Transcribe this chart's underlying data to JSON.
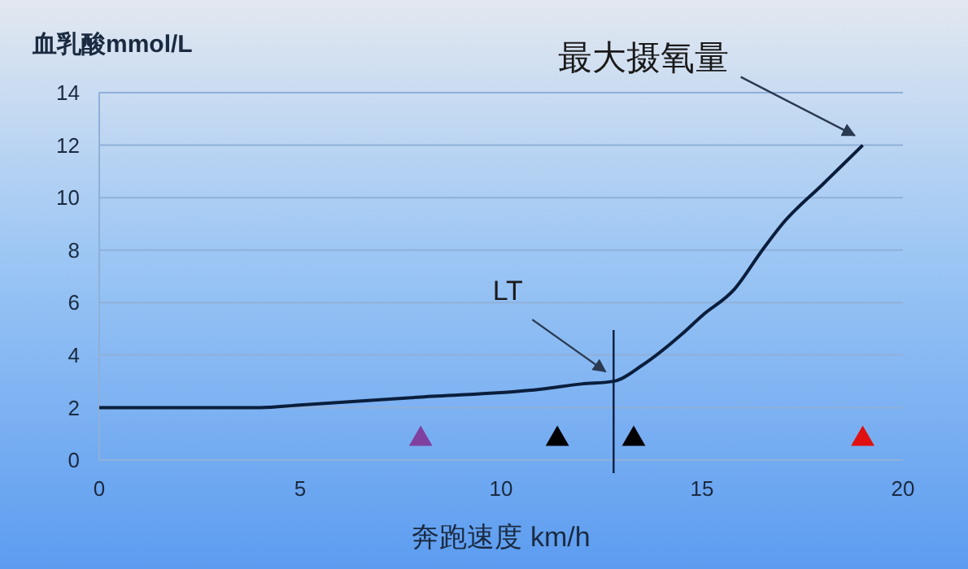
{
  "chart_data": {
    "type": "line",
    "ylabel": "血乳酸mmol/L",
    "xlabel": "奔跑速度 km/h",
    "xlim": [
      0,
      20
    ],
    "xticks": [
      0,
      5,
      10,
      15,
      20
    ],
    "ylim": [
      0,
      14
    ],
    "yticks": [
      0,
      2,
      4,
      6,
      8,
      10,
      12,
      14
    ],
    "grid": "y",
    "series": [
      {
        "color": "#0a1e3c",
        "x": [
          0,
          4,
          5,
          8,
          11,
          12,
          12.8,
          13.5,
          14.5,
          15,
          15.8,
          16.5,
          17,
          18,
          19
        ],
        "values": [
          2,
          2,
          2.1,
          2.4,
          2.7,
          2.9,
          3.0,
          3.6,
          4.8,
          5.5,
          6.5,
          8,
          9,
          10.5,
          12
        ]
      },
      {
        "type": "scatter",
        "marker": "triangle",
        "colors": [
          "#8040a0",
          "#000000",
          "#000000",
          "#e01010"
        ],
        "x": [
          8,
          11.4,
          13.3,
          19
        ],
        "values": [
          0.8,
          0.8,
          0.8,
          0.8
        ]
      }
    ],
    "ref_lines": [
      {
        "axis": "x",
        "value": 12.8,
        "color": "#0a1e3c"
      }
    ],
    "annotations": [
      {
        "text": "LT",
        "x": 12.8,
        "y": 3.0
      },
      {
        "text": "最大摄氧量",
        "x": 19,
        "y": 12
      }
    ]
  }
}
